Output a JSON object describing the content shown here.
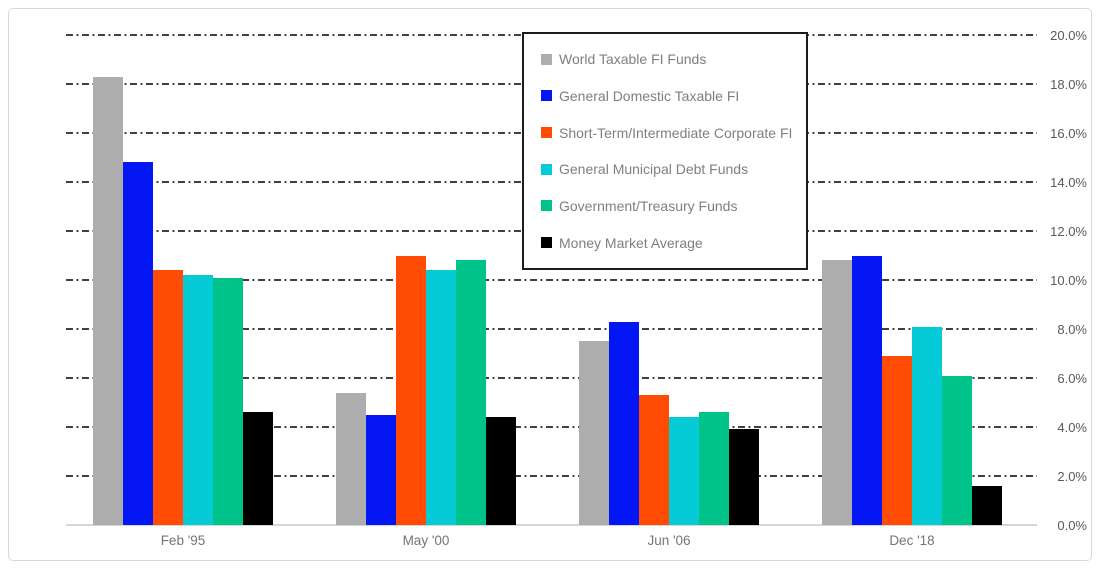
{
  "chart_data": {
    "type": "bar",
    "title": "",
    "xlabel": "",
    "ylabel": "",
    "categories": [
      "Feb '95",
      "May '00",
      "Jun '06",
      "Dec '18"
    ],
    "series": [
      {
        "name": "World Taxable FI Funds",
        "color": "#ADADAD",
        "values": [
          18.3,
          5.4,
          7.5,
          10.8
        ]
      },
      {
        "name": "General Domestic Taxable FI",
        "color": "#0516F5",
        "values": [
          14.8,
          4.5,
          8.3,
          11.0
        ]
      },
      {
        "name": "Short-Term/Intermediate Corporate FI",
        "color": "#FF4B03",
        "values": [
          10.4,
          11.0,
          5.3,
          6.9
        ]
      },
      {
        "name": "General Municipal Debt Funds",
        "color": "#04CBD5",
        "values": [
          10.2,
          10.4,
          4.4,
          8.1
        ]
      },
      {
        "name": "Government/Treasury Funds",
        "color": "#00C389",
        "values": [
          10.1,
          10.8,
          4.6,
          6.1
        ]
      },
      {
        "name": "Money Market Average",
        "color": "#000000",
        "values": [
          4.6,
          4.4,
          3.9,
          1.6
        ]
      }
    ],
    "y_axis": {
      "side": "right",
      "min": 0,
      "max": 20,
      "tick_step": 2,
      "tick_values": [
        0,
        2,
        4,
        6,
        8,
        10,
        12,
        14,
        16,
        18,
        20
      ],
      "tick_labels": [
        "0.0%",
        "2.0%",
        "4.0%",
        "6.0%",
        "8.0%",
        "10.0%",
        "12.0%",
        "14.0%",
        "16.0%",
        "18.0%",
        "20.0%"
      ]
    },
    "grid": {
      "horizontal": true,
      "style": "dash-dot",
      "color": "#3f3f3f"
    },
    "legend": {
      "position": "top-center",
      "boxed": true,
      "border_color": "#1c1c1c"
    },
    "frame_border_color": "#d9d9d9",
    "axis_line_color": "#d6d6d6",
    "background_color": "#ffffff"
  }
}
